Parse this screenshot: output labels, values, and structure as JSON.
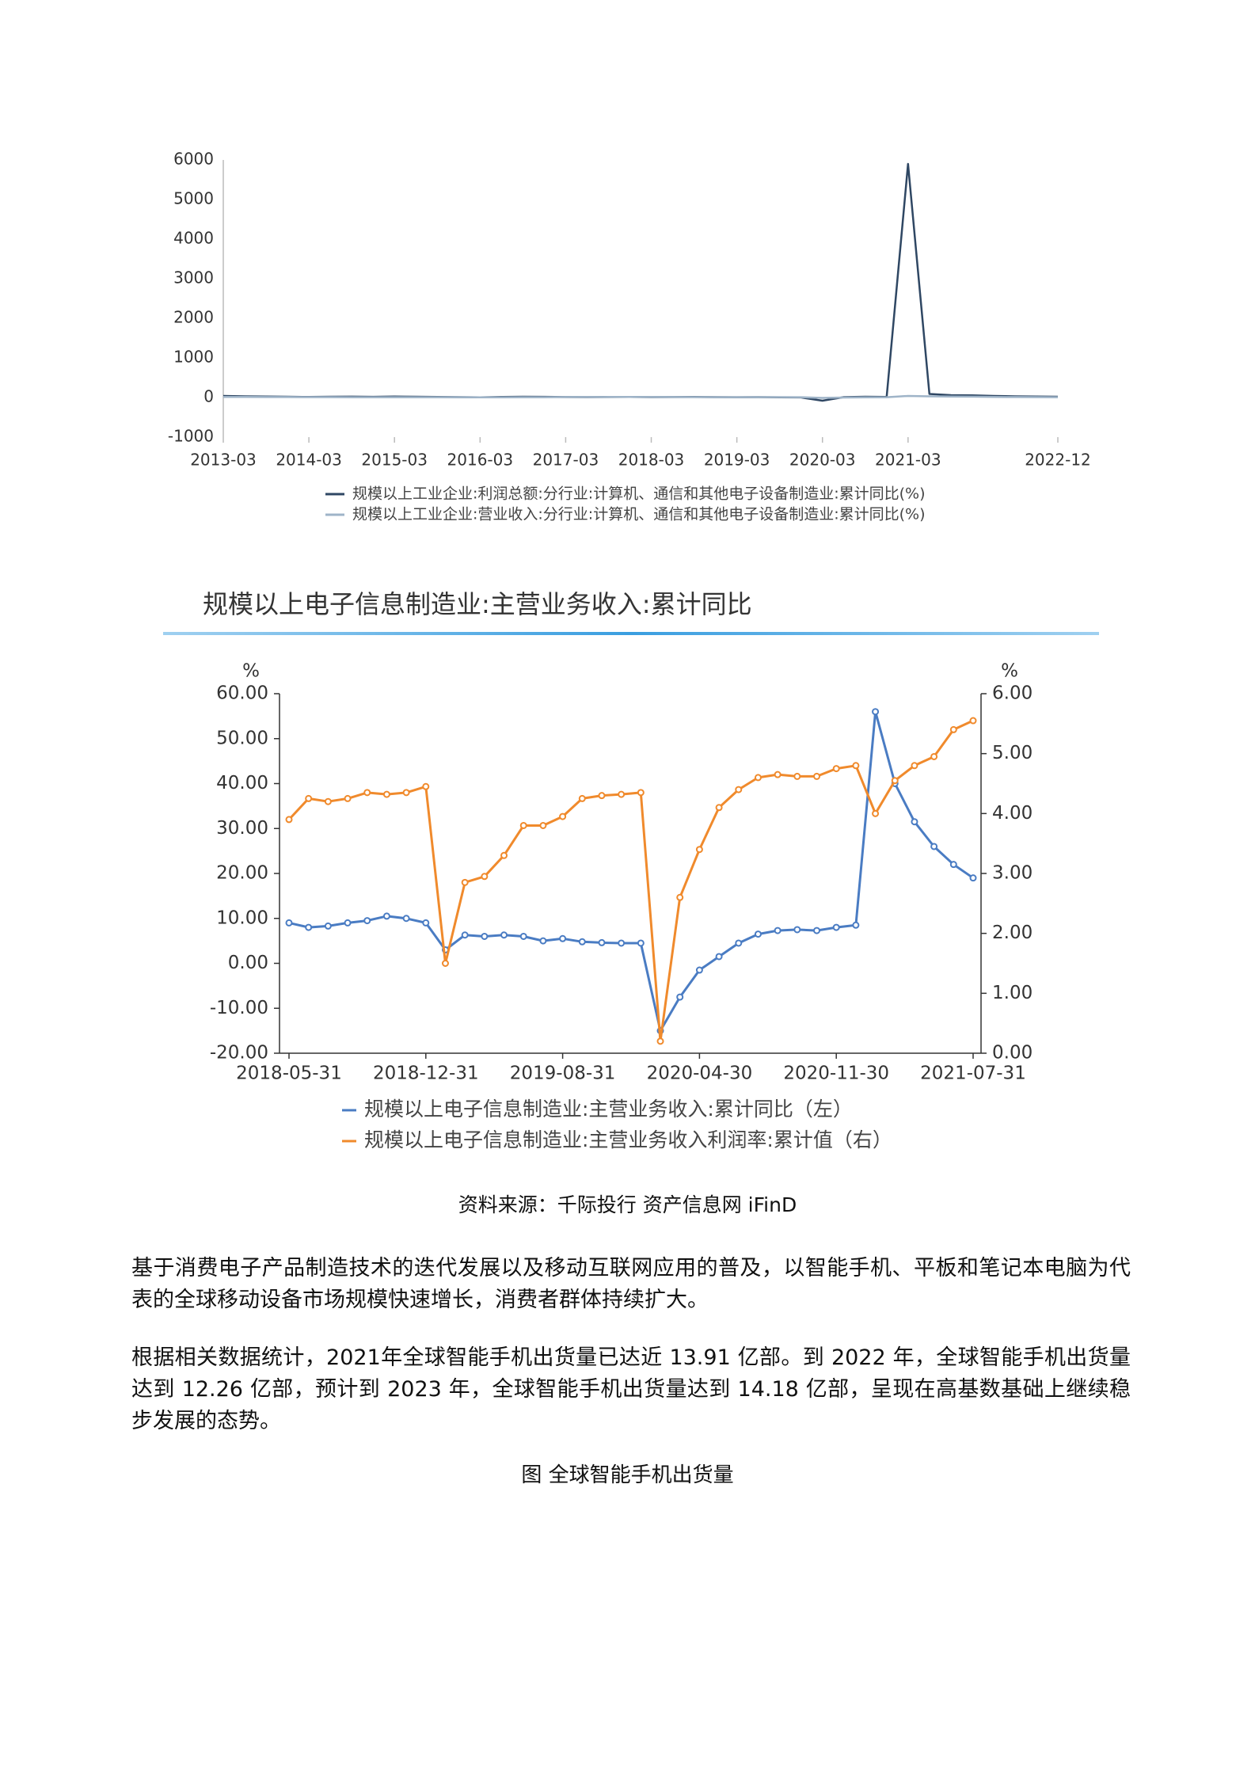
{
  "chart_data": [
    {
      "type": "line",
      "categories": [
        "2013-03",
        null,
        null,
        null,
        "2014-03",
        null,
        null,
        null,
        "2015-03",
        null,
        null,
        null,
        "2016-03",
        null,
        null,
        null,
        "2017-03",
        null,
        null,
        null,
        "2018-03",
        null,
        null,
        null,
        "2019-03",
        null,
        null,
        null,
        "2020-03",
        null,
        null,
        null,
        "2021-03",
        null,
        null,
        null,
        null,
        null,
        null,
        "2022-12"
      ],
      "series": [
        {
          "name": "规模以上工业企业:利润总额:分行业:计算机、通信和其他电子设备制造业:累计同比(%)",
          "color": "#2f4763",
          "values": [
            40,
            30,
            25,
            20,
            15,
            20,
            22,
            18,
            25,
            20,
            15,
            10,
            5,
            15,
            20,
            18,
            12,
            10,
            12,
            15,
            10,
            12,
            15,
            10,
            8,
            10,
            5,
            3,
            -80,
            10,
            20,
            15,
            5900,
            90,
            60,
            55,
            40,
            30,
            25,
            20
          ]
        },
        {
          "name": "规模以上工业企业:营业收入:分行业:计算机、通信和其他电子设备制造业:累计同比(%)",
          "color": "#9fb4c8",
          "values": [
            15,
            14,
            13,
            12,
            10,
            10,
            9,
            8,
            8,
            9,
            9,
            8,
            5,
            6,
            7,
            8,
            12,
            13,
            14,
            14,
            12,
            11,
            10,
            9,
            9,
            10,
            10,
            8,
            -10,
            0,
            5,
            8,
            40,
            30,
            25,
            22,
            15,
            12,
            10,
            8
          ]
        }
      ],
      "ylim": [
        -1000,
        6000
      ],
      "yticks": [
        -1000,
        0,
        1000,
        2000,
        3000,
        4000,
        5000,
        6000
      ]
    },
    {
      "type": "line",
      "title": "规模以上电子信息制造业:主营业务收入:累计同比",
      "y_label": "%",
      "y2_label": "%",
      "categories": [
        "2018-05-31",
        null,
        null,
        null,
        null,
        null,
        null,
        "2018-12-31",
        null,
        null,
        null,
        null,
        null,
        null,
        "2019-08-31",
        null,
        null,
        null,
        null,
        null,
        null,
        "2020-04-30",
        null,
        null,
        null,
        null,
        null,
        null,
        "2020-11-30",
        null,
        null,
        null,
        null,
        null,
        null,
        "2021-07-31"
      ],
      "series": [
        {
          "name": "规模以上电子信息制造业:主营业务收入:累计同比（左）",
          "color": "#4a7cc3",
          "values": [
            9,
            8,
            8.3,
            9,
            9.5,
            10.5,
            10,
            9,
            3,
            6.3,
            6,
            6.3,
            6,
            5,
            5.5,
            4.8,
            4.6,
            4.5,
            4.5,
            -15,
            -7.5,
            -1.5,
            1.5,
            4.5,
            6.5,
            7.3,
            7.5,
            7.3,
            8,
            8.5,
            56,
            40,
            31.5,
            26,
            22,
            19
          ]
        },
        {
          "name": "规模以上电子信息制造业:主营业务收入利润率:累计值（右）",
          "color": "#f08a2c",
          "axis": "y2",
          "values": [
            3.9,
            4.25,
            4.2,
            4.25,
            4.35,
            4.32,
            4.35,
            4.45,
            1.5,
            2.85,
            2.95,
            3.3,
            3.8,
            3.8,
            3.95,
            4.25,
            4.3,
            4.32,
            4.35,
            0.2,
            2.6,
            3.4,
            4.1,
            4.4,
            4.6,
            4.65,
            4.62,
            4.62,
            4.75,
            4.8,
            4.0,
            4.55,
            4.8,
            4.95,
            5.4,
            5.55
          ]
        }
      ],
      "markers": true,
      "ylim": [
        -20,
        60
      ],
      "yticks": [
        {
          "value": -20,
          "label": "-20.00"
        },
        {
          "value": -10,
          "label": "-10.00"
        },
        {
          "value": 0,
          "label": "0.00"
        },
        {
          "value": 10,
          "label": "10.00"
        },
        {
          "value": 20,
          "label": "20.00"
        },
        {
          "value": 30,
          "label": "30.00"
        },
        {
          "value": 40,
          "label": "40.00"
        },
        {
          "value": 50,
          "label": "50.00"
        },
        {
          "value": 60,
          "label": "60.00"
        }
      ],
      "y2lim": [
        0,
        6
      ],
      "y2ticks": [
        {
          "value": 0,
          "label": "0.00"
        },
        {
          "value": 1,
          "label": "1.00"
        },
        {
          "value": 2,
          "label": "2.00"
        },
        {
          "value": 3,
          "label": "3.00"
        },
        {
          "value": 4,
          "label": "4.00"
        },
        {
          "value": 5,
          "label": "5.00"
        },
        {
          "value": 6,
          "label": "6.00"
        }
      ]
    }
  ],
  "source": "资料来源：千际投行 资产信息网 iFinD",
  "paragraphs": [
    "基于消费电子产品制造技术的迭代发展以及移动互联网应用的普及，以智能手机、平板和笔记本电脑为代表的全球移动设备市场规模快速增长，消费者群体持续扩大。",
    "根据相关数据统计，2021年全球智能手机出货量已达近 13.91 亿部。到 2022 年，全球智能手机出货量达到 12.26 亿部，预计到 2023 年，全球智能手机出货量达到 14.18 亿部，呈现在高基数基础上继续稳步发展的态势。"
  ],
  "figure_caption": "图 全球智能手机出货量"
}
